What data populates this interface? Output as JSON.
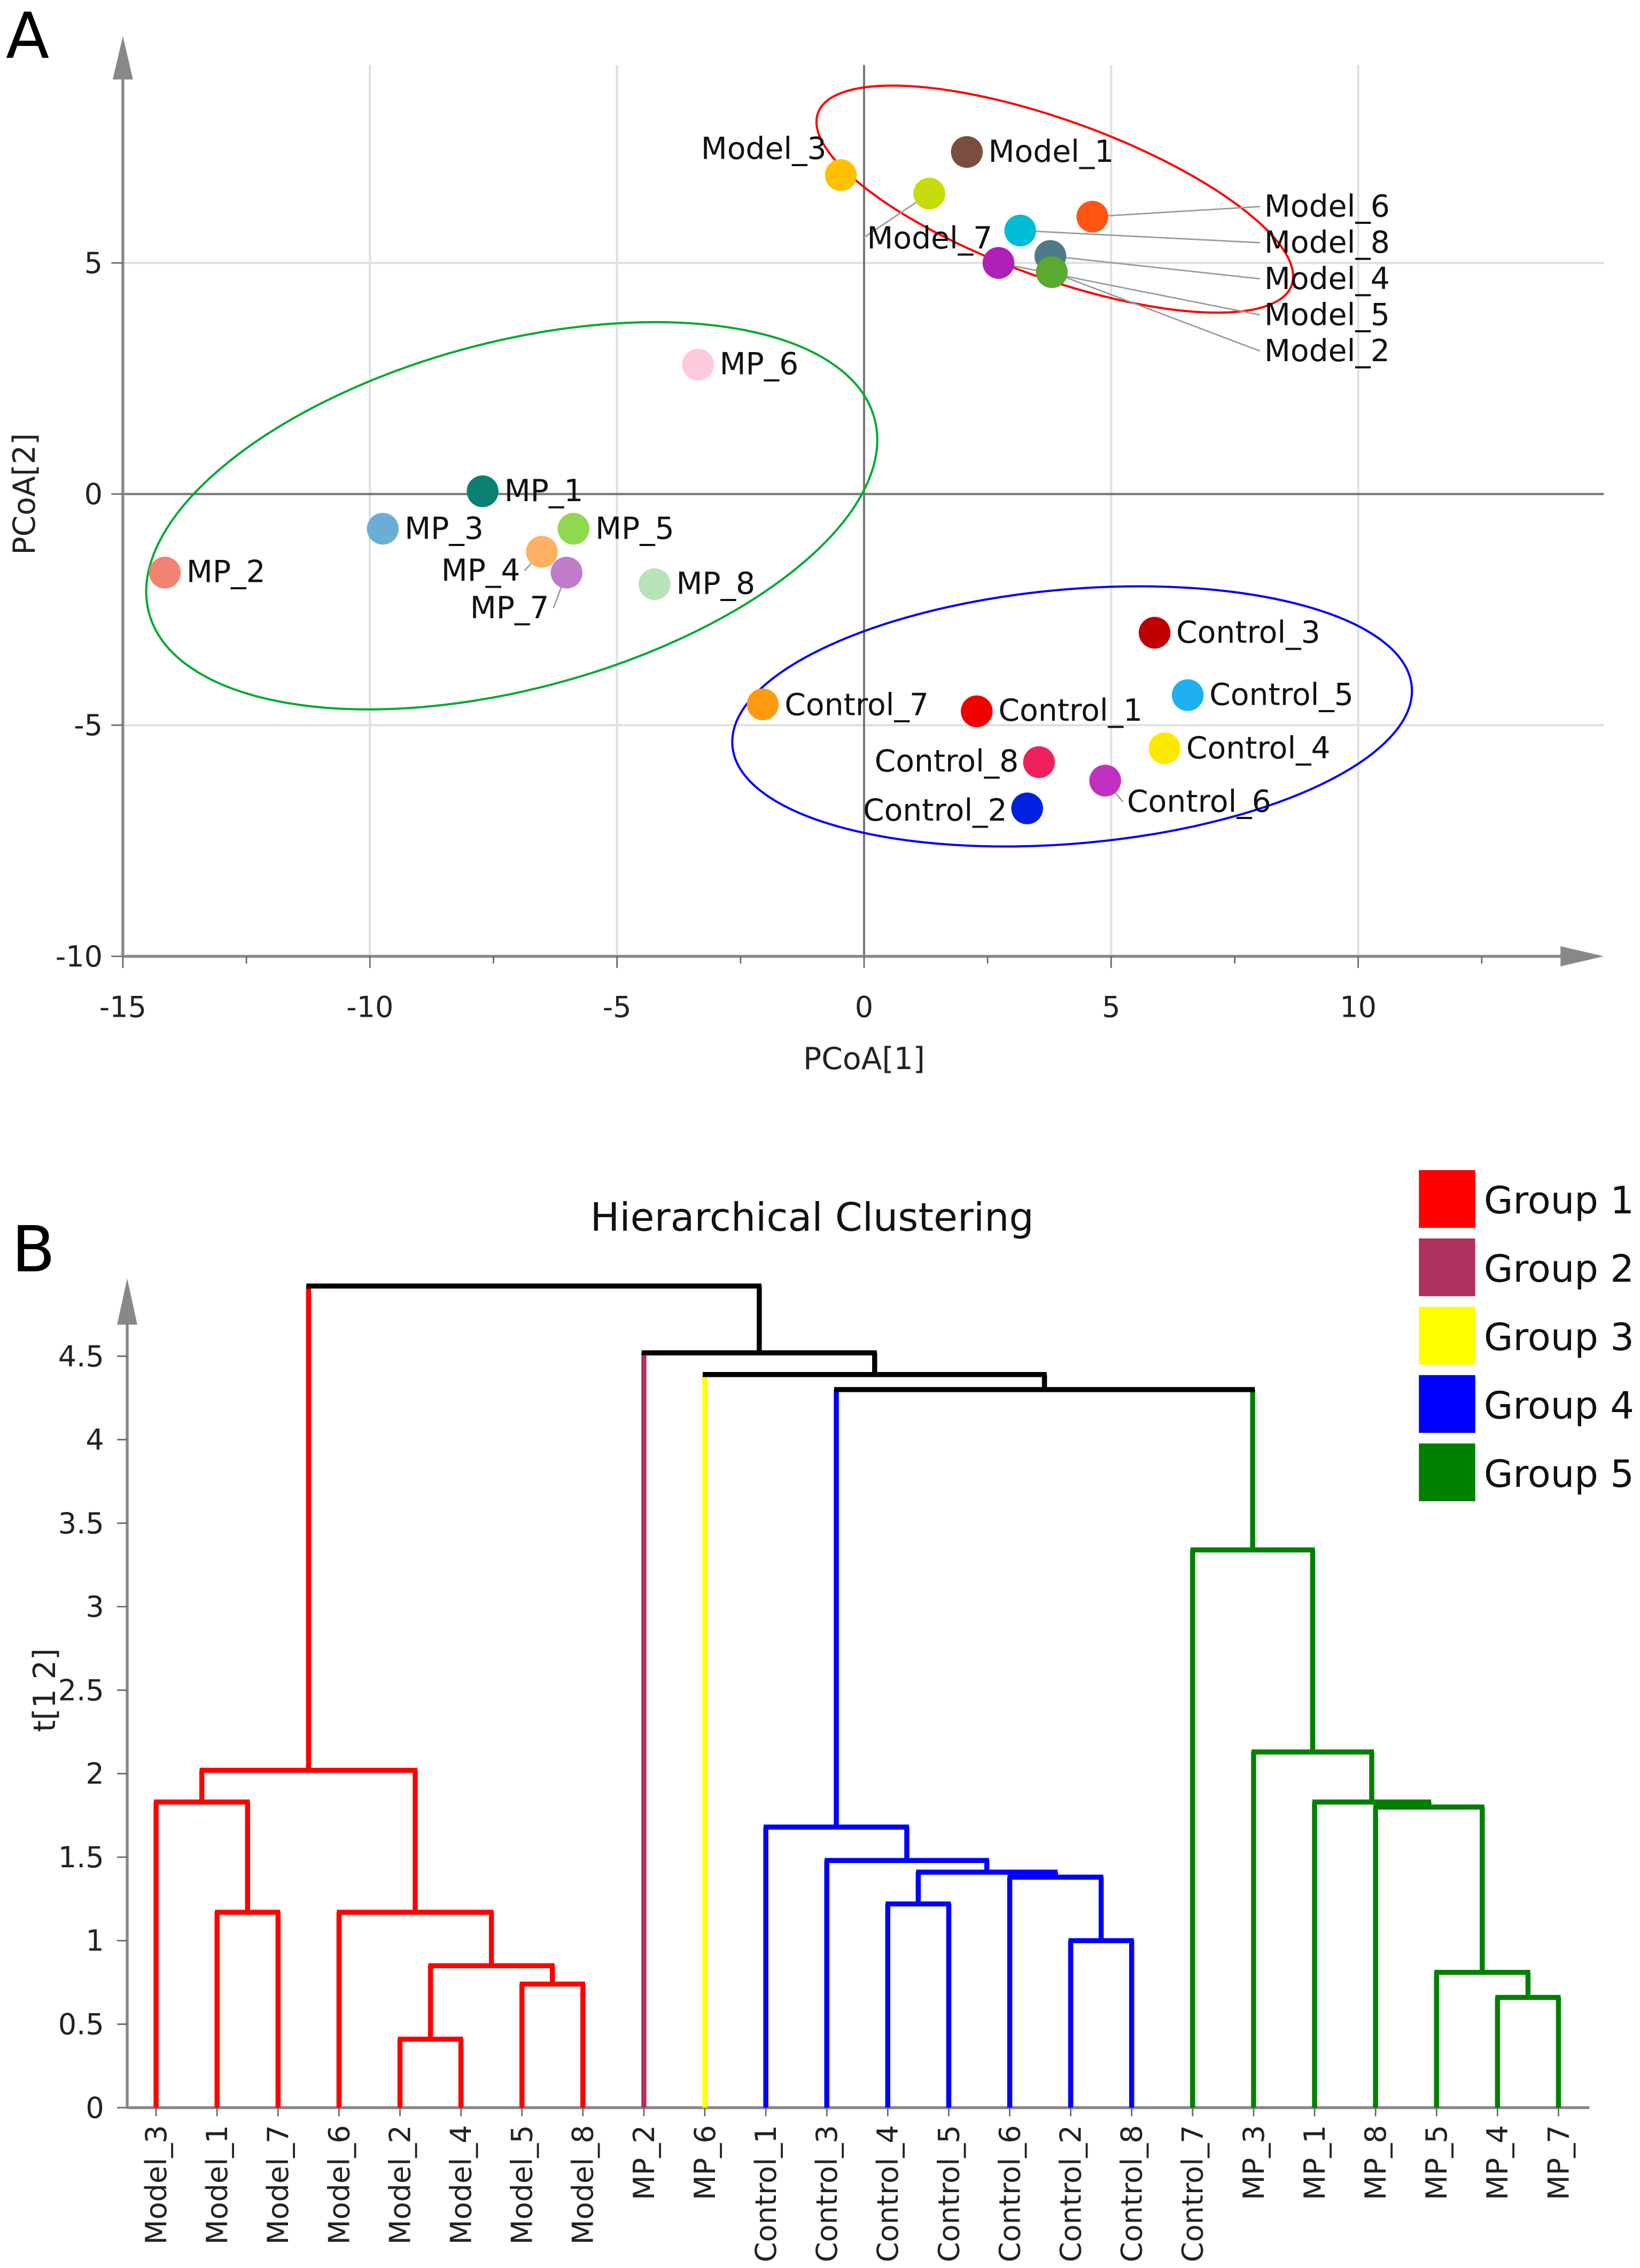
{
  "panels": {
    "a": "A",
    "b": "B"
  },
  "chart_data": [
    {
      "type": "scatter",
      "xlabel": "PCoA[1]",
      "ylabel": "PCoA[2]",
      "xlim": [
        -15,
        15
      ],
      "ylim": [
        -10,
        8.5
      ],
      "xticks": [
        -15,
        -10,
        -5,
        0,
        5,
        10
      ],
      "yticks": [
        -10,
        -5,
        0,
        5
      ],
      "grid": true,
      "points": [
        {
          "label": "Model_1",
          "x": 2.08,
          "y": 7.4,
          "color": "#7a4e3e"
        },
        {
          "label": "Model_3",
          "x": -0.47,
          "y": 6.9,
          "color": "#ffc000"
        },
        {
          "label": "Model_7",
          "x": 1.32,
          "y": 6.5,
          "color": "#c5dc0a"
        },
        {
          "label": "Model_6",
          "x": 4.62,
          "y": 6.0,
          "color": "#ff5512"
        },
        {
          "label": "Model_8",
          "x": 3.16,
          "y": 5.7,
          "color": "#00bcd4"
        },
        {
          "label": "Model_5",
          "x": 2.72,
          "y": 5.0,
          "color": "#b020b8"
        },
        {
          "label": "Model_4",
          "x": 3.77,
          "y": 5.15,
          "color": "#4f7a8a"
        },
        {
          "label": "Model_2",
          "x": 3.8,
          "y": 4.8,
          "color": "#5aaa30"
        },
        {
          "label": "MP_6",
          "x": -3.36,
          "y": 2.8,
          "color": "#ffc8dc"
        },
        {
          "label": "MP_1",
          "x": -7.72,
          "y": 0.06,
          "color": "#0b8072"
        },
        {
          "label": "MP_3",
          "x": -9.74,
          "y": -0.75,
          "color": "#6aaed6"
        },
        {
          "label": "MP_5",
          "x": -5.88,
          "y": -0.75,
          "color": "#8fd850"
        },
        {
          "label": "MP_4",
          "x": -6.52,
          "y": -1.25,
          "color": "#ffb060"
        },
        {
          "label": "MP_7",
          "x": -6.02,
          "y": -1.7,
          "color": "#c07cc8"
        },
        {
          "label": "MP_8",
          "x": -4.24,
          "y": -1.95,
          "color": "#b8e2b8"
        },
        {
          "label": "MP_2",
          "x": -14.15,
          "y": -1.7,
          "color": "#f28272"
        },
        {
          "label": "Control_3",
          "x": 5.88,
          "y": -3.0,
          "color": "#c00000"
        },
        {
          "label": "Control_5",
          "x": 6.55,
          "y": -4.35,
          "color": "#1eb0f0"
        },
        {
          "label": "Control_7",
          "x": -2.05,
          "y": -4.55,
          "color": "#ff9a10"
        },
        {
          "label": "Control_1",
          "x": 2.28,
          "y": -4.7,
          "color": "#f00000"
        },
        {
          "label": "Control_4",
          "x": 6.08,
          "y": -5.5,
          "color": "#ffe800"
        },
        {
          "label": "Control_8",
          "x": 3.54,
          "y": -5.8,
          "color": "#f0205e"
        },
        {
          "label": "Control_6",
          "x": 4.88,
          "y": -6.2,
          "color": "#c030c0"
        },
        {
          "label": "Control_2",
          "x": 3.3,
          "y": -6.8,
          "color": "#0020e0"
        }
      ],
      "ellipses": [
        {
          "group": "Model",
          "cx": 3.86,
          "cy": 6.38,
          "rx": 5.1,
          "ry": 1.7,
          "angle": 20,
          "color": "#ff0000"
        },
        {
          "group": "MP",
          "cx": -7.13,
          "cy": -0.47,
          "rx": 7.6,
          "ry": 3.75,
          "angle": -15,
          "color": "#00aa30"
        },
        {
          "group": "Control",
          "cx": 4.21,
          "cy": -4.81,
          "rx": 6.9,
          "ry": 2.75,
          "angle": -5,
          "color": "#0000ff"
        }
      ]
    },
    {
      "type": "dendrogram",
      "title": "Hierarchical Clustering",
      "ylabel": "t[1 2]",
      "ylim": [
        0,
        5
      ],
      "yticks": [
        "0",
        "0.5",
        "1",
        "1.5",
        "2",
        "2.5",
        "3",
        "3.5",
        "4",
        "4.5"
      ],
      "legend": {
        "position": "top-right",
        "entries": [
          {
            "name": "Group 1",
            "color": "#ff0000"
          },
          {
            "name": "Group 2",
            "color": "#b03060"
          },
          {
            "name": "Group 3",
            "color": "#ffff00"
          },
          {
            "name": "Group 4",
            "color": "#0000ff"
          },
          {
            "name": "Group 5",
            "color": "#008000"
          }
        ]
      },
      "leaves": [
        {
          "label": "Model_3",
          "group": 0
        },
        {
          "label": "Model_1",
          "group": 0
        },
        {
          "label": "Model_7",
          "group": 0
        },
        {
          "label": "Model_6",
          "group": 0
        },
        {
          "label": "Model_2",
          "group": 0
        },
        {
          "label": "Model_4",
          "group": 0
        },
        {
          "label": "Model_5",
          "group": 0
        },
        {
          "label": "Model_8",
          "group": 0
        },
        {
          "label": "MP_2",
          "group": 1
        },
        {
          "label": "MP_6",
          "group": 2
        },
        {
          "label": "Control_1",
          "group": 3
        },
        {
          "label": "Control_3",
          "group": 3
        },
        {
          "label": "Control_4",
          "group": 3
        },
        {
          "label": "Control_5",
          "group": 3
        },
        {
          "label": "Control_6",
          "group": 3
        },
        {
          "label": "Control_2",
          "group": 3
        },
        {
          "label": "Control_8",
          "group": 3
        },
        {
          "label": "Control_7",
          "group": 4
        },
        {
          "label": "MP_3",
          "group": 4
        },
        {
          "label": "MP_1",
          "group": 4
        },
        {
          "label": "MP_8",
          "group": 4
        },
        {
          "label": "MP_5",
          "group": 4
        },
        {
          "label": "MP_4",
          "group": 4
        },
        {
          "label": "MP_7",
          "group": 4
        }
      ],
      "merges": [
        [
          1,
          2,
          1.17,
          "#ff0000"
        ],
        [
          0,
          24,
          1.83,
          "#ff0000"
        ],
        [
          4,
          5,
          0.41,
          "#ff0000"
        ],
        [
          6,
          7,
          0.74,
          "#ff0000"
        ],
        [
          26,
          27,
          0.85,
          "#ff0000"
        ],
        [
          3,
          28,
          1.17,
          "#ff0000"
        ],
        [
          25,
          29,
          2.02,
          "#ff0000"
        ],
        [
          12,
          13,
          1.22,
          "#0000ff"
        ],
        [
          15,
          16,
          1.0,
          "#0000ff"
        ],
        [
          14,
          32,
          1.38,
          "#0000ff"
        ],
        [
          31,
          33,
          1.41,
          "#0000ff"
        ],
        [
          11,
          34,
          1.48,
          "#0000ff"
        ],
        [
          10,
          35,
          1.68,
          "#0000ff"
        ],
        [
          22,
          23,
          0.66,
          "#008000"
        ],
        [
          21,
          37,
          0.81,
          "#008000"
        ],
        [
          20,
          38,
          1.8,
          "#008000"
        ],
        [
          19,
          39,
          1.83,
          "#008000"
        ],
        [
          18,
          40,
          2.13,
          "#008000"
        ],
        [
          17,
          41,
          3.34,
          "#008000"
        ],
        [
          36,
          42,
          4.3,
          "#000000"
        ],
        [
          9,
          43,
          4.39,
          "#000000"
        ],
        [
          8,
          44,
          4.52,
          "#000000"
        ],
        [
          30,
          45,
          4.92,
          "#000000"
        ]
      ]
    }
  ]
}
